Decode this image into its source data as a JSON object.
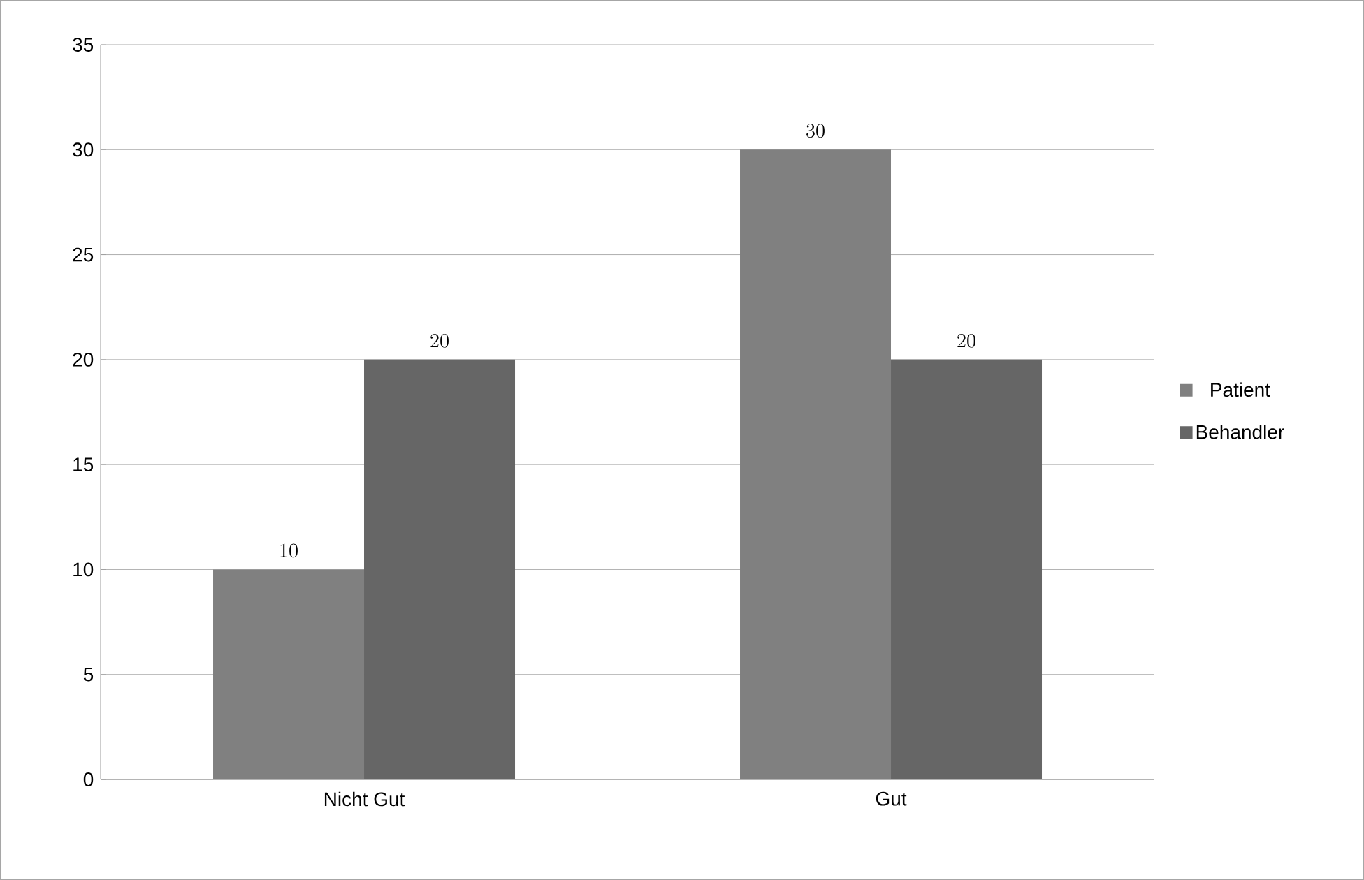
{
  "chart_data": {
    "type": "bar",
    "categories": [
      "Nicht Gut",
      "Gut"
    ],
    "series": [
      {
        "name": "Patient",
        "color": "#808080",
        "values": [
          10,
          30
        ]
      },
      {
        "name": "Behandler",
        "color": "#666666",
        "values": [
          20,
          20
        ]
      }
    ],
    "ylim": [
      0,
      35
    ],
    "yticks": [
      0,
      5,
      10,
      15,
      20,
      25,
      30,
      35
    ],
    "grid": "y",
    "legend": "right",
    "data_labels": true
  }
}
